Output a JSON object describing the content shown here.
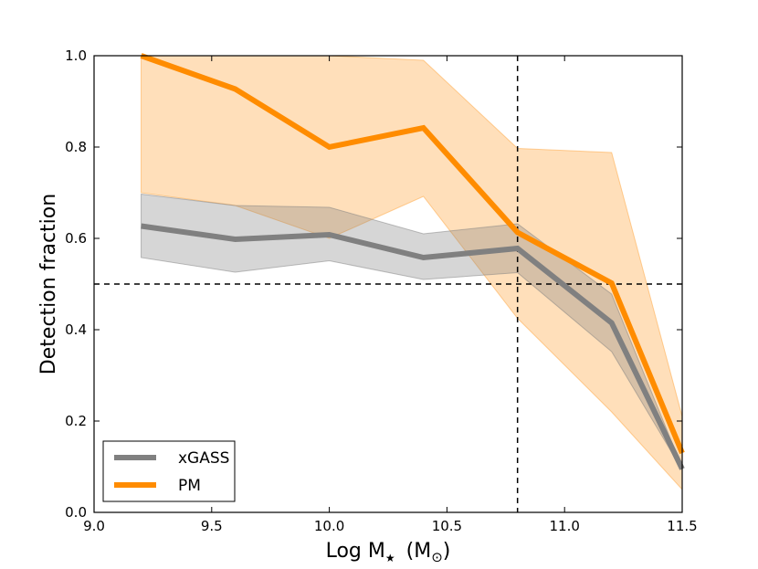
{
  "chart_data": {
    "type": "line",
    "title": "",
    "xlabel_main": "Log M",
    "xlabel_sub": "★",
    "xlabel_unit_open": "(M",
    "xlabel_unit_sub": "⊙",
    "xlabel_unit_close": ")",
    "ylabel": "Detection fraction",
    "xlim": [
      9.0,
      11.5
    ],
    "ylim": [
      0.0,
      1.0
    ],
    "xticks": [
      "9.0",
      "9.5",
      "10.0",
      "10.5",
      "11.0",
      "11.5"
    ],
    "yticks": [
      "0.0",
      "0.2",
      "0.4",
      "0.6",
      "0.8",
      "1.0"
    ],
    "xtick_values": [
      9.0,
      9.5,
      10.0,
      10.5,
      11.0,
      11.5
    ],
    "ytick_values": [
      0.0,
      0.2,
      0.4,
      0.6,
      0.8,
      1.0
    ],
    "grid": false,
    "legend_position": "lower-left",
    "reference_lines": {
      "horizontal_y": 0.5,
      "vertical_x": 10.8
    },
    "series": [
      {
        "name": "xGASS",
        "color": "#808080",
        "band_color": "#808080",
        "x": [
          9.2,
          9.6,
          10.0,
          10.4,
          10.8,
          11.2,
          11.5
        ],
        "values": [
          0.627,
          0.598,
          0.608,
          0.558,
          0.578,
          0.415,
          0.095
        ],
        "lower": [
          0.558,
          0.526,
          0.551,
          0.51,
          0.525,
          0.352,
          0.093
        ],
        "upper": [
          0.697,
          0.672,
          0.668,
          0.61,
          0.632,
          0.478,
          0.098
        ]
      },
      {
        "name": "PM",
        "color": "#ff8c00",
        "band_color": "#ffa43a",
        "x": [
          9.2,
          9.6,
          10.0,
          10.4,
          10.8,
          11.2,
          11.5
        ],
        "values": [
          1.0,
          0.927,
          0.8,
          0.842,
          0.613,
          0.502,
          0.13
        ],
        "lower": [
          0.7,
          0.672,
          0.6,
          0.692,
          0.425,
          0.22,
          0.05
        ],
        "upper": [
          1.0,
          1.0,
          1.0,
          0.99,
          0.797,
          0.788,
          0.21
        ]
      }
    ]
  }
}
